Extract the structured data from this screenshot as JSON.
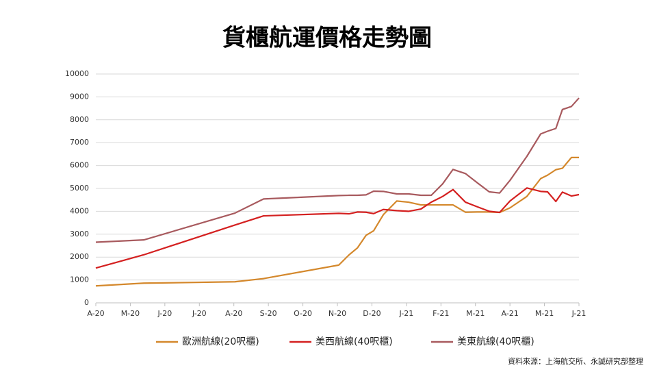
{
  "chart_data": {
    "type": "line",
    "title": "貨櫃航運價格走勢圖",
    "source": "資料來源：上海航交所、永誠研究部整理",
    "x": [
      0,
      1.39,
      4.03,
      4.86,
      7.04,
      7.34,
      7.58,
      7.83,
      8.05,
      8.33,
      8.72,
      9.06,
      9.42,
      9.72,
      10.05,
      10.35,
      10.71,
      11.05,
      11.4,
      11.7,
      12,
      12.49,
      12.89,
      13.09,
      13.33,
      13.52,
      13.78,
      14
    ],
    "series": [
      {
        "name": "歐洲航線(20呎櫃)",
        "color": "#d4882c",
        "values": [
          740,
          860,
          920,
          1060,
          1650,
          2100,
          2400,
          2950,
          3150,
          3850,
          4450,
          4400,
          4280,
          4280,
          4280,
          4280,
          3960,
          3970,
          3970,
          3950,
          4150,
          4650,
          5430,
          5580,
          5820,
          5880,
          6350,
          6350
        ]
      },
      {
        "name": "美西航線(40呎櫃)",
        "color": "#d42020",
        "values": [
          1520,
          2100,
          3400,
          3800,
          3910,
          3890,
          3970,
          3960,
          3900,
          4080,
          4030,
          4000,
          4100,
          4400,
          4650,
          4950,
          4400,
          4200,
          4000,
          3950,
          4450,
          5020,
          4870,
          4850,
          4430,
          4840,
          4670,
          4730
        ]
      },
      {
        "name": "美東航線(40呎櫃)",
        "color": "#a85a5e",
        "values": [
          2650,
          2750,
          3920,
          4540,
          4690,
          4700,
          4700,
          4720,
          4880,
          4870,
          4760,
          4760,
          4700,
          4700,
          5200,
          5830,
          5650,
          5250,
          4850,
          4800,
          5350,
          6400,
          7380,
          7500,
          7620,
          8450,
          8580,
          8950
        ]
      }
    ],
    "xlim": [
      0,
      14
    ],
    "xticks": [
      {
        "value": 0,
        "label": "A-20"
      },
      {
        "value": 1,
        "label": "M-20"
      },
      {
        "value": 2,
        "label": "J-20"
      },
      {
        "value": 3,
        "label": "J-20"
      },
      {
        "value": 4,
        "label": "A-20"
      },
      {
        "value": 5,
        "label": "S-20"
      },
      {
        "value": 6,
        "label": "O-20"
      },
      {
        "value": 7,
        "label": "N-20"
      },
      {
        "value": 8,
        "label": "D-20"
      },
      {
        "value": 9,
        "label": "J-21"
      },
      {
        "value": 10,
        "label": "F-21"
      },
      {
        "value": 11,
        "label": "M-21"
      },
      {
        "value": 12,
        "label": "A-21"
      },
      {
        "value": 13,
        "label": "M-21"
      },
      {
        "value": 14,
        "label": "J-21"
      }
    ],
    "ylim": [
      0,
      10000
    ],
    "yticks": [
      0,
      1000,
      2000,
      3000,
      4000,
      5000,
      6000,
      7000,
      8000,
      9000,
      10000
    ],
    "grid": true
  }
}
